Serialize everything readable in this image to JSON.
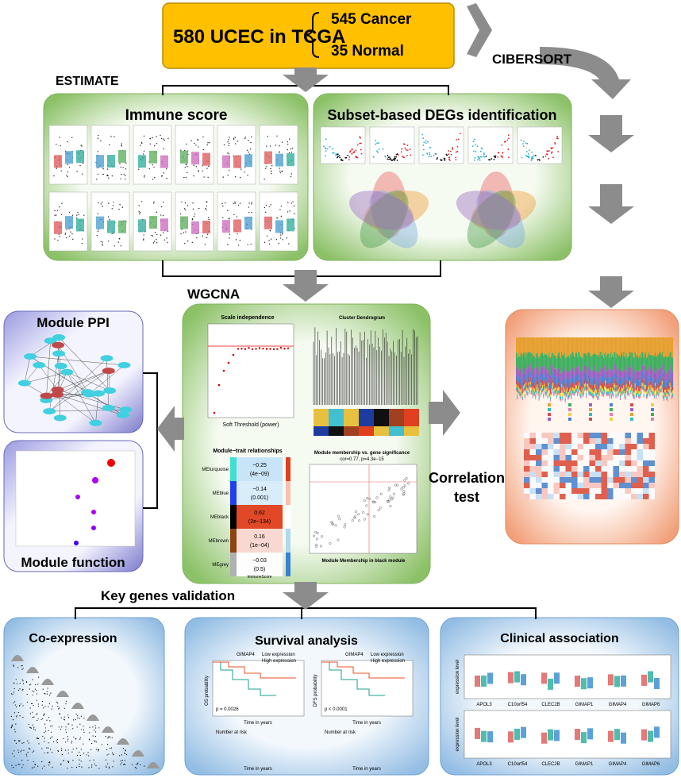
{
  "header": {
    "cohort": "580 UCEC in TCGA",
    "cancer": "545 Cancer",
    "normal": "35 Normal"
  },
  "labels": {
    "cibersort": "CIBERSORT",
    "estimate": "ESTIMATE",
    "wgcna": "WGCNA",
    "correlation": [
      "Correlation",
      "test"
    ],
    "validation": "Key genes validation"
  },
  "nodes": {
    "immune_score": "Immune score",
    "degs": "Subset-based DEGs identification",
    "module_ppi": "Module PPI",
    "module_function": "Module function",
    "co_expression": "Co-expression",
    "survival": "Survival analysis",
    "clinical": "Clinical association"
  },
  "wgcna": {
    "scale_title": "Scale independence",
    "scale_x": "Soft Threshold (power)",
    "dendro_title": "Cluster Dendrogram",
    "trait_title": "Module−trait relationships",
    "trait_x": "ImmuneScore",
    "modules": [
      {
        "name": "MEturquoise",
        "cor": "−0.25",
        "p": "(4e−09)"
      },
      {
        "name": "MEblue",
        "cor": "−0.14",
        "p": "(0.001)"
      },
      {
        "name": "MEblack",
        "cor": "0.62",
        "p": "(2e−134)"
      },
      {
        "name": "MEbrown",
        "cor": "0.16",
        "p": "(1e−04)"
      },
      {
        "name": "MEgrey",
        "cor": "−0.03",
        "p": "(0.5)"
      }
    ],
    "mm_title": "Module membership vs. gene significance",
    "mm_stats": "cor=0.77, p=4.3e−15",
    "mm_x": "Module Membership in black module"
  },
  "survival": {
    "gene": "GIMAP4",
    "legend": [
      "Low expression",
      "High expression"
    ],
    "p": [
      "p = 0.0026",
      "p < 0.0001"
    ],
    "y": [
      "OS probability",
      "DFS probability"
    ],
    "x": "Time in years",
    "risk": "Number at risk"
  },
  "clinical": {
    "genes": [
      "APOL3",
      "C10orf54",
      "CLEC2B",
      "GIMAP1",
      "GIMAP4",
      "GIMAP6"
    ],
    "y": "expression level"
  }
}
